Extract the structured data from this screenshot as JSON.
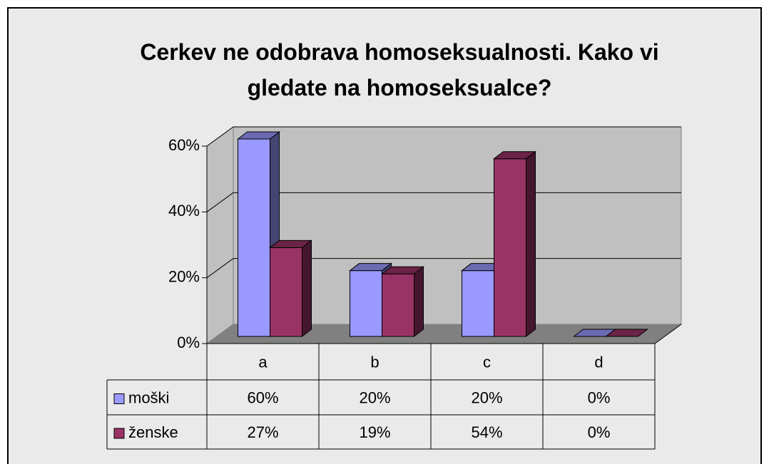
{
  "chart_data": {
    "type": "bar3d",
    "title": "Cerkev ne odobrava homoseksualnosti. Kako vi gledate na homoseksualce?",
    "categories": [
      "a",
      "b",
      "c",
      "d"
    ],
    "series": [
      {
        "name": "moški",
        "color": "#9999ff",
        "values": [
          60,
          20,
          20,
          0
        ],
        "value_labels": [
          "60%",
          "20%",
          "20%",
          "0%"
        ]
      },
      {
        "name": "ženske",
        "color": "#993366",
        "values": [
          27,
          19,
          54,
          0
        ],
        "value_labels": [
          "27%",
          "19%",
          "54%",
          "0%"
        ]
      }
    ],
    "ylim": [
      0,
      60
    ],
    "yticks": [
      {
        "value": 0,
        "label": "0%"
      },
      {
        "value": 20,
        "label": "20%"
      },
      {
        "value": 40,
        "label": "40%"
      },
      {
        "value": 60,
        "label": "60%"
      }
    ],
    "grid": true,
    "data_table": true
  }
}
